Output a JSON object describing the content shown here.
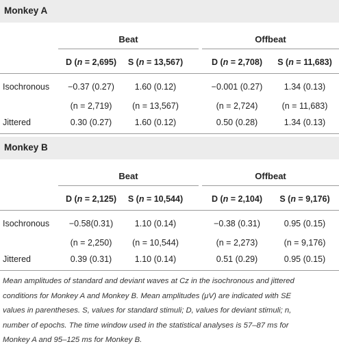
{
  "sections": [
    {
      "title": "Monkey A",
      "groups": [
        "Beat",
        "Offbeat"
      ],
      "columns": [
        [
          "D (",
          "n",
          " = 2,695)"
        ],
        [
          "S (",
          "n",
          " = 13,567)"
        ],
        [
          "D (",
          "n",
          " = 2,708)"
        ],
        [
          "S (",
          "n",
          " = 11,683)"
        ]
      ],
      "rows": [
        {
          "label": "Isochronous",
          "cells": [
            "−0.37 (0.27)",
            "1.60 (0.12)",
            "−0.001 (0.27)",
            "1.34 (0.13)"
          ]
        },
        {
          "cells": [
            "(n = 2,719)",
            "(n = 13,567)",
            "(n = 2,724)",
            "(n = 11,683)"
          ]
        },
        {
          "label": "Jittered",
          "cells": [
            "0.30 (0.27)",
            "1.60 (0.12)",
            "0.50 (0.28)",
            "1.34 (0.13)"
          ]
        }
      ]
    },
    {
      "title": "Monkey B",
      "groups": [
        "Beat",
        "Offbeat"
      ],
      "columns": [
        [
          "D (",
          "n",
          " = 2,125)"
        ],
        [
          "S (",
          "n",
          " = 10,544)"
        ],
        [
          "D (",
          "n",
          " = 2,104)"
        ],
        [
          "S (",
          "n",
          " = 9,176)"
        ]
      ],
      "rows": [
        {
          "label": "Isochronous",
          "cells": [
            "−0.58(0.31)",
            "1.10 (0.14)",
            "−0.38 (0.31)",
            "0.95 (0.15)"
          ]
        },
        {
          "cells": [
            "(n = 2,250)",
            "(n = 10,544)",
            "(n = 2,273)",
            "(n = 9,176)"
          ]
        },
        {
          "label": "Jittered",
          "cells": [
            "0.39 (0.31)",
            "1.10 (0.14)",
            "0.51 (0.29)",
            "0.95 (0.15)"
          ]
        }
      ]
    }
  ],
  "caption": [
    "Mean amplitudes of standard and deviant waves at Cz in the isochronous and jittered",
    "conditions for Monkey A and Monkey B. Mean amplitudes (μV) are indicated with SE",
    "values in parentheses. S, values for standard stimuli; D, values for deviant stimuli; n,",
    "number of epochs. The time window used in the statistical analyses is 57–87 ms for",
    "Monkey A and 95–125 ms for Monkey B."
  ]
}
